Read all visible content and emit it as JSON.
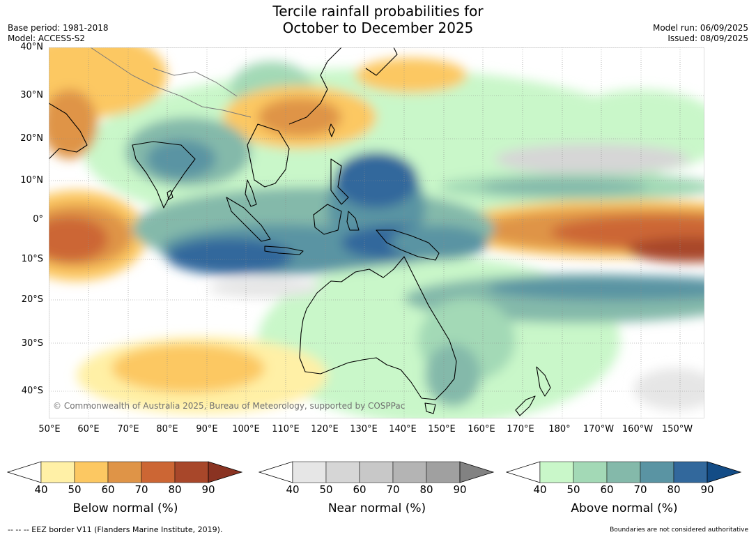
{
  "title": {
    "line1": "Tercile rainfall probabilities for",
    "line2": "October to December 2025"
  },
  "meta": {
    "base_period": "Base period: 1981-2018",
    "model": "Model: ACCESS-S2",
    "model_run": "Model run: 06/09/2025",
    "issued": "Issued: 08/09/2025"
  },
  "map": {
    "lat_labels": [
      "40°N",
      "30°N",
      "20°N",
      "10°N",
      "0°",
      "10°S",
      "20°S",
      "30°S",
      "40°S"
    ],
    "lon_labels": [
      "50°E",
      "60°E",
      "70°E",
      "80°E",
      "90°E",
      "100°E",
      "110°E",
      "120°E",
      "130°E",
      "140°E",
      "150°E",
      "160°E",
      "170°E",
      "180°",
      "170°W",
      "160°W",
      "150°W"
    ],
    "copyright": "© Commonwealth of Australia 2025, Bureau of Meteorology, supported by COSPPac",
    "lat_range": [
      -44,
      41
    ],
    "lon_range": [
      50,
      216
    ]
  },
  "legends": [
    {
      "id": "below",
      "title": "Below normal (%)",
      "ticks": [
        "40",
        "50",
        "60",
        "70",
        "80",
        "90"
      ],
      "colors": [
        "#fff0a6",
        "#fcc862",
        "#df9447",
        "#cc6634",
        "#a8472a",
        "#8a3322"
      ]
    },
    {
      "id": "near",
      "title": "Near normal (%)",
      "ticks": [
        "40",
        "50",
        "60",
        "70",
        "80",
        "90"
      ],
      "colors": [
        "#e6e6e6",
        "#d6d6d6",
        "#c8c8c8",
        "#b4b4b4",
        "#a0a0a0",
        "#828282"
      ]
    },
    {
      "id": "above",
      "title": "Above normal (%)",
      "ticks": [
        "40",
        "50",
        "60",
        "70",
        "80",
        "90"
      ],
      "colors": [
        "#c9f7c9",
        "#a3d9b6",
        "#84b9aa",
        "#5a94a3",
        "#32689c",
        "#134c86"
      ]
    }
  ],
  "footer": {
    "eez": "--  --  -- EEZ border V11 (Flanders Marine Institute, 2019).",
    "boundaries": "Boundaries are not considered authoritative"
  }
}
